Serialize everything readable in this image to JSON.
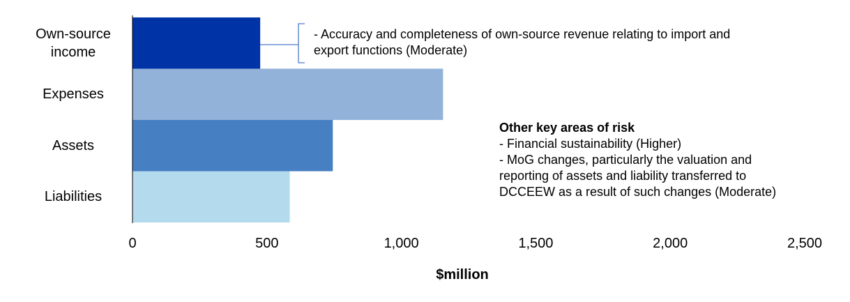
{
  "chart_data": {
    "type": "bar",
    "orientation": "horizontal",
    "categories": [
      "Own-source income",
      "Expenses",
      "Assets",
      "Liabilities"
    ],
    "category_label_lines": [
      [
        "Own-source",
        "income"
      ],
      [
        "Expenses"
      ],
      [
        "Assets"
      ],
      [
        "Liabilities"
      ]
    ],
    "values": [
      475,
      1155,
      745,
      585
    ],
    "colors": [
      "#0033a5",
      "#92b2d9",
      "#467fc2",
      "#b4daee"
    ],
    "xlim": [
      0,
      2500
    ],
    "x_ticks": [
      0,
      500,
      1000,
      1500,
      2000,
      2500
    ],
    "x_tick_labels": [
      "0",
      "500",
      "1,000",
      "1,500",
      "2,000",
      "2,500"
    ],
    "xlabel": "$million",
    "grid": false,
    "legend": "none"
  },
  "annotations": {
    "own_source_risk": {
      "lines": [
        "- Accuracy and completeness of own-source revenue relating to import and",
        "export functions (Moderate)"
      ]
    },
    "other_risks": {
      "heading": "Other key areas of risk",
      "lines": [
        "- Financial sustainability (Higher)",
        "- MoG changes, particularly the valuation and",
        "reporting of assets and liability transferred to",
        "DCCEEW as a result of such changes (Moderate)"
      ]
    }
  },
  "colors": {
    "connector": "#4a7cc9",
    "axis": "#000000"
  }
}
